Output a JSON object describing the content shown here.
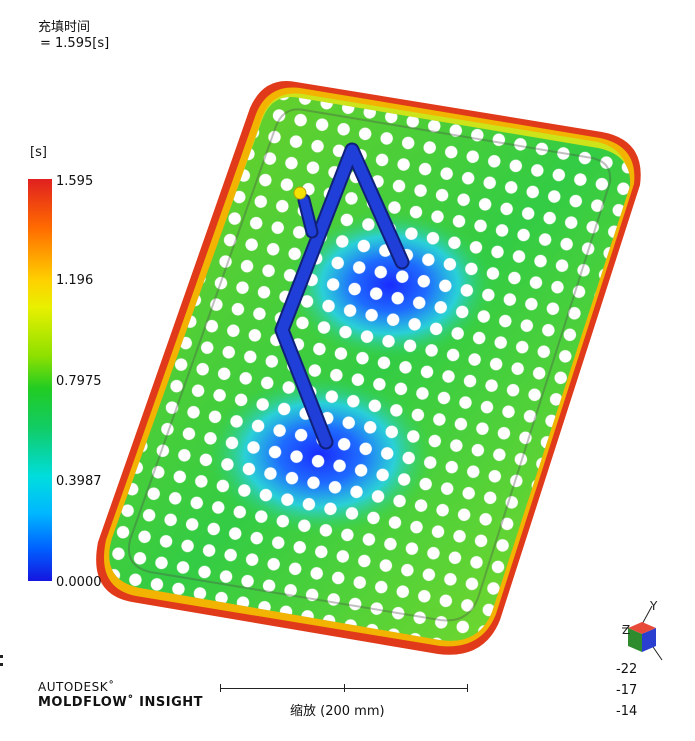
{
  "header": {
    "title": "充填时间",
    "value": "= 1.595[s]"
  },
  "legend": {
    "unit": "[s]",
    "ticks": [
      "1.595",
      "1.196",
      "0.7975",
      "0.3987",
      "0.0000"
    ],
    "gradient_colors": [
      "#e02020",
      "#ffd000",
      "#22cc22",
      "#00dddd",
      "#1515e0"
    ]
  },
  "brand": {
    "line1": "AUTODESK˚",
    "line2": "MOLDFLOW˚ INSIGHT"
  },
  "scale": {
    "label": "缩放 (200 mm)"
  },
  "axis": {
    "y_label": "Y",
    "z_label": "Z",
    "values": [
      "-22",
      "-17",
      "-14"
    ]
  }
}
